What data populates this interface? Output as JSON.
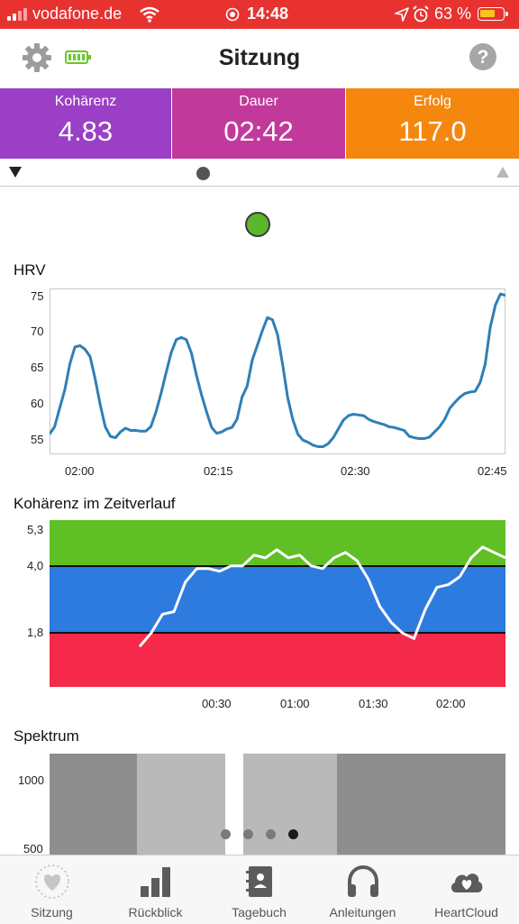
{
  "status_bar": {
    "carrier": "vodafone.de",
    "time": "14:48",
    "battery_percent": "63 %"
  },
  "header": {
    "title": "Sitzung"
  },
  "metrics": [
    {
      "label": "Kohärenz",
      "value": "4.83",
      "color": "#9a3fc6"
    },
    {
      "label": "Dauer",
      "value": "02:42",
      "color": "#c2399c"
    },
    {
      "label": "Erfolg",
      "value": "117.0",
      "color": "#f5870f"
    }
  ],
  "status_indicator_color": "#5ab82a",
  "hrv": {
    "title": "HRV",
    "y_ticks": [
      "75",
      "70",
      "65",
      "60",
      "55"
    ],
    "x_ticks": [
      "02:00",
      "02:15",
      "02:30",
      "02:45"
    ]
  },
  "coherence": {
    "title": "Kohärenz im Zeitverlauf",
    "y_ticks": [
      "5,3",
      "4,0",
      "1,8"
    ],
    "x_ticks": [
      "00:30",
      "01:00",
      "01:30",
      "02:00"
    ],
    "zone_colors": {
      "high": "#5fbf24",
      "medium": "#2e7be0",
      "low": "#f5294a"
    }
  },
  "spectrum": {
    "title": "Spektrum",
    "y_ticks": [
      "1000",
      "500"
    ]
  },
  "page_indicator": {
    "count": 4,
    "active_index": 3
  },
  "tabs": [
    {
      "label": "Sitzung",
      "icon": "heart-sun-icon"
    },
    {
      "label": "Rückblick",
      "icon": "bar-chart-icon"
    },
    {
      "label": "Tagebuch",
      "icon": "journal-icon"
    },
    {
      "label": "Anleitungen",
      "icon": "headphones-icon"
    },
    {
      "label": "HeartCloud",
      "icon": "cloud-heart-icon"
    }
  ],
  "chart_data": [
    {
      "type": "line",
      "title": "HRV",
      "ylim": [
        54,
        76
      ],
      "x_tick_labels": [
        "02:00",
        "02:15",
        "02:30",
        "02:45"
      ],
      "series": [
        {
          "values": [
            56.5,
            57.5,
            60,
            62.5,
            66,
            68.3,
            68.5,
            68,
            67,
            64,
            60.5,
            57.5,
            56.2,
            56,
            56.8,
            57.3,
            57,
            57,
            56.9,
            56.9,
            57.5,
            59.5,
            62,
            64.8,
            67.5,
            69.3,
            69.6,
            69.3,
            67.5,
            64.5,
            61.8,
            59.5,
            57.4,
            56.6,
            56.8,
            57.2,
            57.4,
            58.5,
            61.5,
            63,
            66.5,
            68.5,
            70.5,
            72.3,
            72,
            70,
            66,
            61.5,
            58.5,
            56.5,
            55.7,
            55.4,
            55,
            54.8,
            54.8,
            55.2,
            56,
            57.2,
            58.4,
            59,
            59.2,
            59.1,
            59,
            58.5,
            58.2,
            58,
            57.8,
            57.5,
            57.4,
            57.2,
            57,
            56.2,
            56,
            55.9,
            55.9,
            56.1,
            56.8,
            57.5,
            58.5,
            60,
            60.8,
            61.5,
            62,
            62.2,
            62.3,
            63.5,
            66,
            71,
            74,
            75.5,
            75.3
          ]
        }
      ]
    },
    {
      "type": "line",
      "title": "Kohärenz im Zeitverlauf",
      "ylim": [
        0,
        6.2
      ],
      "bands": [
        {
          "from": 0,
          "to": 1.8,
          "color": "#f5294a"
        },
        {
          "from": 1.8,
          "to": 4.0,
          "color": "#2e7be0"
        },
        {
          "from": 4.0,
          "to": 5.5,
          "color": "#5fbf24"
        }
      ],
      "x_tick_labels": [
        "00:30",
        "01:00",
        "01:30",
        "02:00"
      ],
      "series": [
        {
          "values": [
            1.5,
            2.0,
            2.7,
            2.8,
            3.9,
            4.4,
            4.4,
            4.3,
            4.5,
            4.5,
            4.9,
            4.8,
            5.1,
            4.8,
            4.9,
            4.5,
            4.4,
            4.8,
            5.0,
            4.7,
            4.0,
            3.0,
            2.4,
            2.0,
            1.8,
            2.9,
            3.7,
            3.8,
            4.1,
            4.8,
            5.2,
            5.0,
            4.8
          ]
        }
      ]
    }
  ]
}
